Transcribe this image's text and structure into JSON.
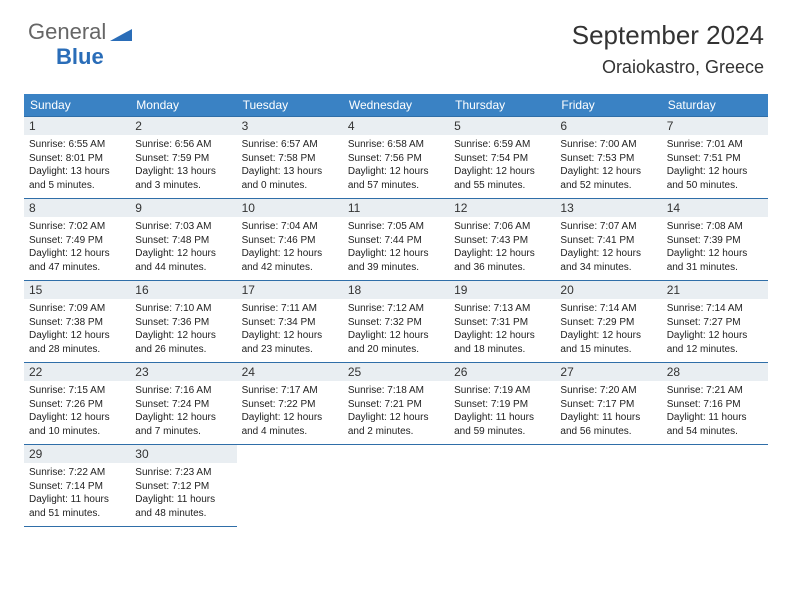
{
  "branding": {
    "name_top": "General",
    "name_bottom": "Blue",
    "triangle_color": "#2a6db8"
  },
  "header": {
    "month_title": "September 2024",
    "location": "Oraiokastro, Greece"
  },
  "theme": {
    "header_bg": "#3a82c4",
    "header_border": "#2f6ea8",
    "daynum_bg": "#e9eef2",
    "text_color": "#222222",
    "page_bg": "#ffffff"
  },
  "day_headers": [
    "Sunday",
    "Monday",
    "Tuesday",
    "Wednesday",
    "Thursday",
    "Friday",
    "Saturday"
  ],
  "weeks": [
    [
      {
        "n": "1",
        "sr": "Sunrise: 6:55 AM",
        "ss": "Sunset: 8:01 PM",
        "d1": "Daylight: 13 hours",
        "d2": "and 5 minutes."
      },
      {
        "n": "2",
        "sr": "Sunrise: 6:56 AM",
        "ss": "Sunset: 7:59 PM",
        "d1": "Daylight: 13 hours",
        "d2": "and 3 minutes."
      },
      {
        "n": "3",
        "sr": "Sunrise: 6:57 AM",
        "ss": "Sunset: 7:58 PM",
        "d1": "Daylight: 13 hours",
        "d2": "and 0 minutes."
      },
      {
        "n": "4",
        "sr": "Sunrise: 6:58 AM",
        "ss": "Sunset: 7:56 PM",
        "d1": "Daylight: 12 hours",
        "d2": "and 57 minutes."
      },
      {
        "n": "5",
        "sr": "Sunrise: 6:59 AM",
        "ss": "Sunset: 7:54 PM",
        "d1": "Daylight: 12 hours",
        "d2": "and 55 minutes."
      },
      {
        "n": "6",
        "sr": "Sunrise: 7:00 AM",
        "ss": "Sunset: 7:53 PM",
        "d1": "Daylight: 12 hours",
        "d2": "and 52 minutes."
      },
      {
        "n": "7",
        "sr": "Sunrise: 7:01 AM",
        "ss": "Sunset: 7:51 PM",
        "d1": "Daylight: 12 hours",
        "d2": "and 50 minutes."
      }
    ],
    [
      {
        "n": "8",
        "sr": "Sunrise: 7:02 AM",
        "ss": "Sunset: 7:49 PM",
        "d1": "Daylight: 12 hours",
        "d2": "and 47 minutes."
      },
      {
        "n": "9",
        "sr": "Sunrise: 7:03 AM",
        "ss": "Sunset: 7:48 PM",
        "d1": "Daylight: 12 hours",
        "d2": "and 44 minutes."
      },
      {
        "n": "10",
        "sr": "Sunrise: 7:04 AM",
        "ss": "Sunset: 7:46 PM",
        "d1": "Daylight: 12 hours",
        "d2": "and 42 minutes."
      },
      {
        "n": "11",
        "sr": "Sunrise: 7:05 AM",
        "ss": "Sunset: 7:44 PM",
        "d1": "Daylight: 12 hours",
        "d2": "and 39 minutes."
      },
      {
        "n": "12",
        "sr": "Sunrise: 7:06 AM",
        "ss": "Sunset: 7:43 PM",
        "d1": "Daylight: 12 hours",
        "d2": "and 36 minutes."
      },
      {
        "n": "13",
        "sr": "Sunrise: 7:07 AM",
        "ss": "Sunset: 7:41 PM",
        "d1": "Daylight: 12 hours",
        "d2": "and 34 minutes."
      },
      {
        "n": "14",
        "sr": "Sunrise: 7:08 AM",
        "ss": "Sunset: 7:39 PM",
        "d1": "Daylight: 12 hours",
        "d2": "and 31 minutes."
      }
    ],
    [
      {
        "n": "15",
        "sr": "Sunrise: 7:09 AM",
        "ss": "Sunset: 7:38 PM",
        "d1": "Daylight: 12 hours",
        "d2": "and 28 minutes."
      },
      {
        "n": "16",
        "sr": "Sunrise: 7:10 AM",
        "ss": "Sunset: 7:36 PM",
        "d1": "Daylight: 12 hours",
        "d2": "and 26 minutes."
      },
      {
        "n": "17",
        "sr": "Sunrise: 7:11 AM",
        "ss": "Sunset: 7:34 PM",
        "d1": "Daylight: 12 hours",
        "d2": "and 23 minutes."
      },
      {
        "n": "18",
        "sr": "Sunrise: 7:12 AM",
        "ss": "Sunset: 7:32 PM",
        "d1": "Daylight: 12 hours",
        "d2": "and 20 minutes."
      },
      {
        "n": "19",
        "sr": "Sunrise: 7:13 AM",
        "ss": "Sunset: 7:31 PM",
        "d1": "Daylight: 12 hours",
        "d2": "and 18 minutes."
      },
      {
        "n": "20",
        "sr": "Sunrise: 7:14 AM",
        "ss": "Sunset: 7:29 PM",
        "d1": "Daylight: 12 hours",
        "d2": "and 15 minutes."
      },
      {
        "n": "21",
        "sr": "Sunrise: 7:14 AM",
        "ss": "Sunset: 7:27 PM",
        "d1": "Daylight: 12 hours",
        "d2": "and 12 minutes."
      }
    ],
    [
      {
        "n": "22",
        "sr": "Sunrise: 7:15 AM",
        "ss": "Sunset: 7:26 PM",
        "d1": "Daylight: 12 hours",
        "d2": "and 10 minutes."
      },
      {
        "n": "23",
        "sr": "Sunrise: 7:16 AM",
        "ss": "Sunset: 7:24 PM",
        "d1": "Daylight: 12 hours",
        "d2": "and 7 minutes."
      },
      {
        "n": "24",
        "sr": "Sunrise: 7:17 AM",
        "ss": "Sunset: 7:22 PM",
        "d1": "Daylight: 12 hours",
        "d2": "and 4 minutes."
      },
      {
        "n": "25",
        "sr": "Sunrise: 7:18 AM",
        "ss": "Sunset: 7:21 PM",
        "d1": "Daylight: 12 hours",
        "d2": "and 2 minutes."
      },
      {
        "n": "26",
        "sr": "Sunrise: 7:19 AM",
        "ss": "Sunset: 7:19 PM",
        "d1": "Daylight: 11 hours",
        "d2": "and 59 minutes."
      },
      {
        "n": "27",
        "sr": "Sunrise: 7:20 AM",
        "ss": "Sunset: 7:17 PM",
        "d1": "Daylight: 11 hours",
        "d2": "and 56 minutes."
      },
      {
        "n": "28",
        "sr": "Sunrise: 7:21 AM",
        "ss": "Sunset: 7:16 PM",
        "d1": "Daylight: 11 hours",
        "d2": "and 54 minutes."
      }
    ],
    [
      {
        "n": "29",
        "sr": "Sunrise: 7:22 AM",
        "ss": "Sunset: 7:14 PM",
        "d1": "Daylight: 11 hours",
        "d2": "and 51 minutes."
      },
      {
        "n": "30",
        "sr": "Sunrise: 7:23 AM",
        "ss": "Sunset: 7:12 PM",
        "d1": "Daylight: 11 hours",
        "d2": "and 48 minutes."
      },
      null,
      null,
      null,
      null,
      null
    ]
  ]
}
